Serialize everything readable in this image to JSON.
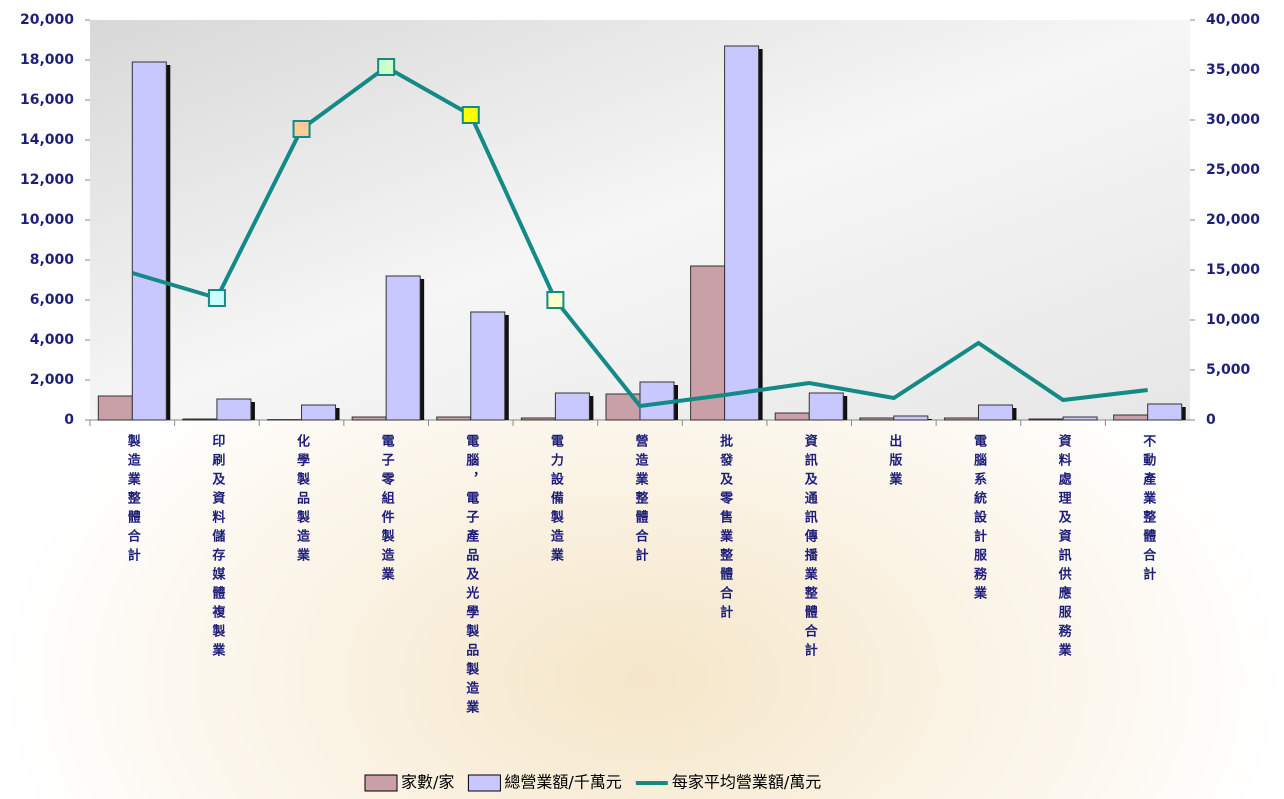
{
  "chart_data": {
    "type": "bar-line",
    "categories": [
      "製造業整體合計",
      "印刷及資料儲存媒體複製業",
      "化學製品製造業",
      "電子零組件製造業",
      "電腦，電子產品及光學製品製造業",
      "電力設備製造業",
      "營造業整體合計",
      "批發及零售業整體合計",
      "資訊及通訊傳播業整體合計",
      "出版業",
      "電腦系統設計服務業",
      "資料處理及資訊供應服務業",
      "不動產業整體合計"
    ],
    "series": [
      {
        "name": "家數/家",
        "type": "bar",
        "color": "#c9a0a8",
        "values": [
          1200,
          50,
          20,
          150,
          150,
          100,
          1300,
          7700,
          350,
          100,
          100,
          50,
          250
        ]
      },
      {
        "name": "總營業額/千萬元",
        "type": "bar",
        "color": "#c8c8ff",
        "values": [
          17900,
          1050,
          750,
          7200,
          5400,
          1350,
          1900,
          18700,
          1350,
          200,
          750,
          150,
          800
        ]
      },
      {
        "name": "每家平均營業額/萬元",
        "type": "line",
        "axis": "y2",
        "color": "#138a85",
        "values": [
          14700,
          12200,
          29100,
          35300,
          30500,
          12000,
          1400,
          2500,
          3700,
          2200,
          7700,
          2000,
          3000
        ],
        "marker_colors": [
          null,
          "#ccffff",
          "#ffcc99",
          "#ccffcc",
          "#ffff00",
          "#ffffcc",
          null,
          null,
          null,
          null,
          null,
          null,
          null
        ]
      }
    ],
    "ylim": [
      0,
      20000
    ],
    "yticks": [
      0,
      {
        "value": 2000,
        "label": "2,000"
      },
      {
        "value": 4000,
        "label": "4,000"
      },
      {
        "value": 6000,
        "label": "6,000"
      },
      {
        "value": 8000,
        "label": "8,000"
      },
      {
        "value": 10000,
        "label": "10,000"
      },
      {
        "value": 12000,
        "label": "12,000"
      },
      {
        "value": 14000,
        "label": "14,000"
      },
      {
        "value": 16000,
        "label": "16,000"
      },
      {
        "value": 18000,
        "label": "18,000"
      },
      {
        "value": 20000,
        "label": "20,000"
      }
    ],
    "y2lim": [
      0,
      40000
    ],
    "y2ticks": [
      0,
      {
        "value": 5000,
        "label": "5,000"
      },
      {
        "value": 10000,
        "label": "10,000"
      },
      {
        "value": 15000,
        "label": "15,000"
      },
      {
        "value": 20000,
        "label": "20,000"
      },
      {
        "value": 25000,
        "label": "25,000"
      },
      {
        "value": 30000,
        "label": "30,000"
      },
      {
        "value": 35000,
        "label": "35,000"
      },
      {
        "value": 40000,
        "label": "40,000"
      }
    ],
    "legend": "bottom"
  }
}
